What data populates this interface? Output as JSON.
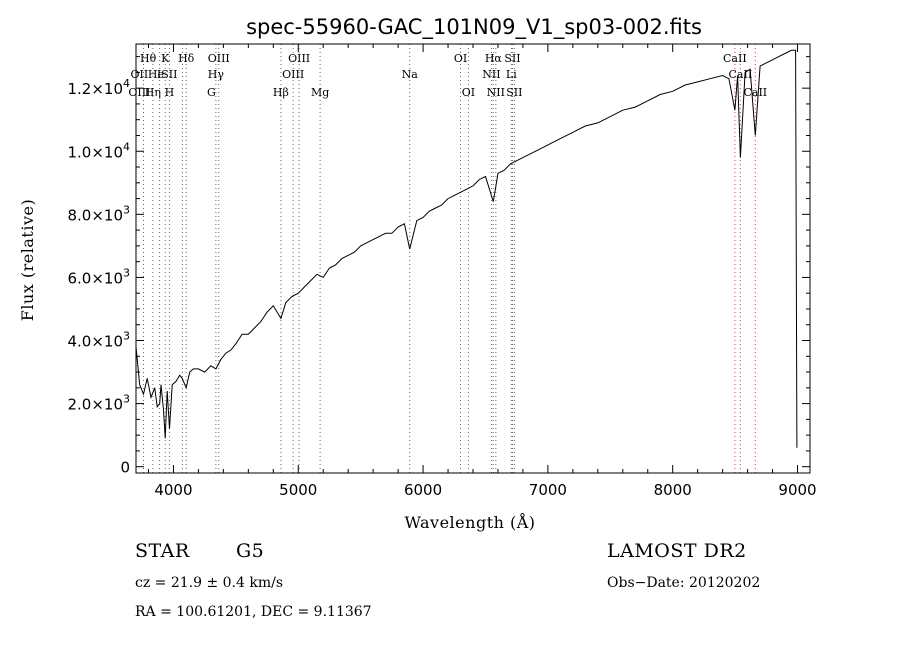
{
  "chart_data": {
    "type": "line",
    "title": "spec-55960-GAC_101N09_V1_sp03-002.fits",
    "xlabel": "Wavelength (Å)",
    "ylabel": "Flux (relative)",
    "xlim": [
      3700,
      9100
    ],
    "ylim": [
      -200,
      13400
    ],
    "grid": false,
    "legend": "none",
    "x_ticks": [
      4000,
      5000,
      6000,
      7000,
      8000,
      9000
    ],
    "x_tick_labels": [
      "4000",
      "5000",
      "6000",
      "7000",
      "8000",
      "9000"
    ],
    "y_ticks": [
      0,
      2000,
      4000,
      6000,
      8000,
      10000,
      12000
    ],
    "y_tick_labels": [
      {
        "mant": "0",
        "exp": ""
      },
      {
        "mant": "2.0×10",
        "exp": "3"
      },
      {
        "mant": "4.0×10",
        "exp": "3"
      },
      {
        "mant": "6.0×10",
        "exp": "3"
      },
      {
        "mant": "8.0×10",
        "exp": "3"
      },
      {
        "mant": "1.0×10",
        "exp": "4"
      },
      {
        "mant": "1.2×10",
        "exp": "4"
      }
    ],
    "series": [
      {
        "color": "#000000",
        "x": [
          3700,
          3730,
          3760,
          3790,
          3820,
          3850,
          3870,
          3890,
          3900,
          3920,
          3934,
          3950,
          3968,
          3990,
          4020,
          4050,
          4070,
          4102,
          4130,
          4160,
          4200,
          4250,
          4300,
          4340,
          4380,
          4420,
          4460,
          4500,
          4550,
          4600,
          4650,
          4700,
          4750,
          4800,
          4861,
          4900,
          4950,
          5000,
          5050,
          5100,
          5150,
          5200,
          5250,
          5300,
          5350,
          5400,
          5450,
          5500,
          5550,
          5600,
          5650,
          5700,
          5750,
          5800,
          5850,
          5893,
          5950,
          6000,
          6050,
          6100,
          6150,
          6200,
          6250,
          6300,
          6350,
          6400,
          6450,
          6500,
          6563,
          6600,
          6650,
          6700,
          6750,
          6800,
          6900,
          7000,
          7100,
          7200,
          7300,
          7400,
          7500,
          7600,
          7700,
          7800,
          7900,
          8000,
          8100,
          8200,
          8300,
          8400,
          8450,
          8498,
          8520,
          8542,
          8580,
          8620,
          8662,
          8700,
          8750,
          8800,
          8850,
          8900,
          8950,
          8985,
          8995
        ],
        "y": [
          3800,
          2600,
          2300,
          2800,
          2200,
          2500,
          1900,
          2000,
          2600,
          1800,
          900,
          2400,
          1200,
          2600,
          2700,
          2900,
          2800,
          2500,
          3000,
          3100,
          3100,
          3000,
          3200,
          3100,
          3400,
          3600,
          3700,
          3900,
          4200,
          4200,
          4400,
          4600,
          4900,
          5100,
          4700,
          5200,
          5400,
          5500,
          5700,
          5900,
          6100,
          6000,
          6300,
          6400,
          6600,
          6700,
          6800,
          7000,
          7100,
          7200,
          7300,
          7400,
          7400,
          7600,
          7700,
          6900,
          7800,
          7900,
          8100,
          8200,
          8300,
          8500,
          8600,
          8700,
          8800,
          8900,
          9100,
          9200,
          8400,
          9300,
          9400,
          9600,
          9700,
          9800,
          10000,
          10200,
          10400,
          10600,
          10800,
          10900,
          11100,
          11300,
          11400,
          11600,
          11800,
          11900,
          12100,
          12200,
          12300,
          12400,
          12300,
          11300,
          12400,
          9800,
          12500,
          12600,
          10500,
          12700,
          12800,
          12900,
          13000,
          13100,
          13200,
          13200,
          600
        ]
      }
    ],
    "lines": {
      "top1": [
        {
          "x": 3760,
          "label": "OII"
        },
        {
          "x": 3835,
          "label": "Hη"
        },
        {
          "x": 3889,
          "label": "HeI"
        },
        {
          "x": 3934,
          "label": "K"
        },
        {
          "x": 3968,
          "label": "H"
        },
        {
          "x": 4072,
          "label": "SII"
        },
        {
          "x": 4102,
          "label": "Hδ"
        },
        {
          "x": 4340,
          "label": "Hγ"
        },
        {
          "x": 4363,
          "label": "OIII"
        },
        {
          "x": 4861,
          "label": "Hβ"
        },
        {
          "x": 4959,
          "label": "OIII"
        },
        {
          "x": 5007,
          "label": "OIII"
        },
        {
          "x": 5175,
          "label": "Mg"
        },
        {
          "x": 5893,
          "label": "Na"
        },
        {
          "x": 6300,
          "label": "OI"
        },
        {
          "x": 6363,
          "label": "OI"
        },
        {
          "x": 6548,
          "label": "NII"
        },
        {
          "x": 6563,
          "label": "Hα"
        },
        {
          "x": 6583,
          "label": "NII"
        },
        {
          "x": 6707,
          "label": "Li"
        },
        {
          "x": 6716,
          "label": "SII"
        },
        {
          "x": 6731,
          "label": "SII"
        }
      ],
      "top2": [
        {
          "x": 8498,
          "label": "CaII"
        },
        {
          "x": 8542,
          "label": "CaII"
        },
        {
          "x": 8662,
          "label": "CaII"
        }
      ],
      "labels": [
        {
          "text": "Hθ",
          "x": 3797,
          "row": 1
        },
        {
          "text": "OII",
          "x": 3727,
          "row": 2
        },
        {
          "text": "He",
          "x": 3860,
          "row": 2
        },
        {
          "text": "OIII",
          "x": 3727,
          "row": 3
        },
        {
          "text": "Hη",
          "x": 3835,
          "row": 3
        },
        {
          "text": "K",
          "x": 3934,
          "row": 1
        },
        {
          "text": "ISII",
          "x": 3950,
          "row": 2
        },
        {
          "text": "H",
          "x": 3968,
          "row": 3
        },
        {
          "text": "Hδ",
          "x": 4102,
          "row": 1
        },
        {
          "text": "OIII",
          "x": 4363,
          "row": 1
        },
        {
          "text": "Hγ",
          "x": 4340,
          "row": 2
        },
        {
          "text": "G",
          "x": 4304,
          "row": 3
        },
        {
          "text": "OIII",
          "x": 5007,
          "row": 1
        },
        {
          "text": "OIII",
          "x": 4959,
          "row": 2
        },
        {
          "text": "Hβ",
          "x": 4861,
          "row": 3
        },
        {
          "text": "Mg",
          "x": 5175,
          "row": 3
        },
        {
          "text": "Na",
          "x": 5893,
          "row": 2
        },
        {
          "text": "OI",
          "x": 6300,
          "row": 1
        },
        {
          "text": "OI",
          "x": 6363,
          "row": 3
        },
        {
          "text": "Hα",
          "x": 6563,
          "row": 1
        },
        {
          "text": "SII",
          "x": 6716,
          "row": 1
        },
        {
          "text": "NII",
          "x": 6548,
          "row": 2
        },
        {
          "text": "Li",
          "x": 6707,
          "row": 2
        },
        {
          "text": "NII",
          "x": 6583,
          "row": 3
        },
        {
          "text": "SII",
          "x": 6731,
          "row": 3
        },
        {
          "text": "CaII",
          "x": 8498,
          "row": 1
        },
        {
          "text": "CaII",
          "x": 8542,
          "row": 2
        },
        {
          "text": "CaII",
          "x": 8662,
          "row": 3
        }
      ],
      "colors": {
        "line_red": "#d04040",
        "line_black": "#666666"
      }
    }
  },
  "info": {
    "obj_class": "STAR",
    "subclass": "G5",
    "survey": "LAMOST  DR2",
    "cz": "cz = 21.9 ± 0.4 km/s",
    "obs_date": "Obs−Date: 20120202",
    "radec": "RA = 100.61201, DEC =    9.11367"
  }
}
